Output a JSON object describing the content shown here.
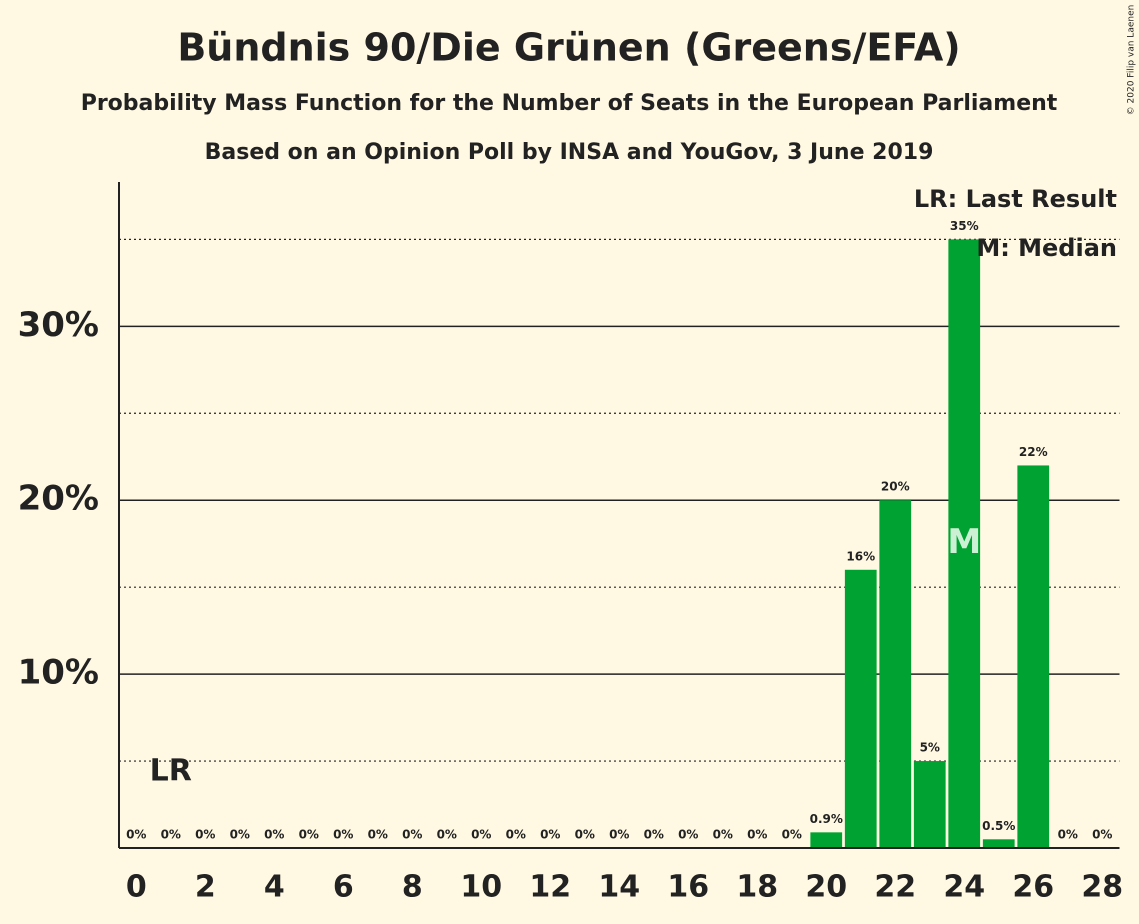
{
  "chart_data": {
    "type": "bar",
    "title": "Bündnis 90/Die Grünen (Greens/EFA)",
    "subtitles": [
      "Probability Mass Function for the Number of Seats in the European Parliament",
      "Based on an Opinion Poll by INSA and YouGov, 3 June 2019"
    ],
    "x": [
      0,
      1,
      2,
      3,
      4,
      5,
      6,
      7,
      8,
      9,
      10,
      11,
      12,
      13,
      14,
      15,
      16,
      17,
      18,
      19,
      20,
      21,
      22,
      23,
      24,
      25,
      26,
      27,
      28
    ],
    "values": [
      0,
      0,
      0,
      0,
      0,
      0,
      0,
      0,
      0,
      0,
      0,
      0,
      0,
      0,
      0,
      0,
      0,
      0,
      0,
      0,
      0.9,
      16,
      20,
      5,
      35,
      0.5,
      22,
      0,
      0
    ],
    "value_labels": [
      "0%",
      "0%",
      "0%",
      "0%",
      "0%",
      "0%",
      "0%",
      "0%",
      "0%",
      "0%",
      "0%",
      "0%",
      "0%",
      "0%",
      "0%",
      "0%",
      "0%",
      "0%",
      "0%",
      "0%",
      "0.9%",
      "16%",
      "20%",
      "5%",
      "35%",
      "0.5%",
      "22%",
      "0%",
      "0%"
    ],
    "color": "#00a331",
    "xlim": [
      -0.5,
      28.5
    ],
    "xticks": [
      0,
      2,
      4,
      6,
      8,
      10,
      12,
      14,
      16,
      18,
      20,
      22,
      24,
      26,
      28
    ],
    "ylim": [
      0,
      38.3
    ],
    "yticks": [
      {
        "value": 10,
        "label": "10%"
      },
      {
        "value": 20,
        "label": "20%"
      },
      {
        "value": 30,
        "label": "30%"
      }
    ],
    "minor_yticks": [
      5,
      15,
      25,
      35
    ],
    "grid": true,
    "last_result": {
      "label": "LR",
      "x": 1
    },
    "median": {
      "label": "M",
      "x": 24
    },
    "legend": [
      "LR: Last Result",
      "M: Median"
    ],
    "credit": "© 2020 Filip van Laenen"
  }
}
